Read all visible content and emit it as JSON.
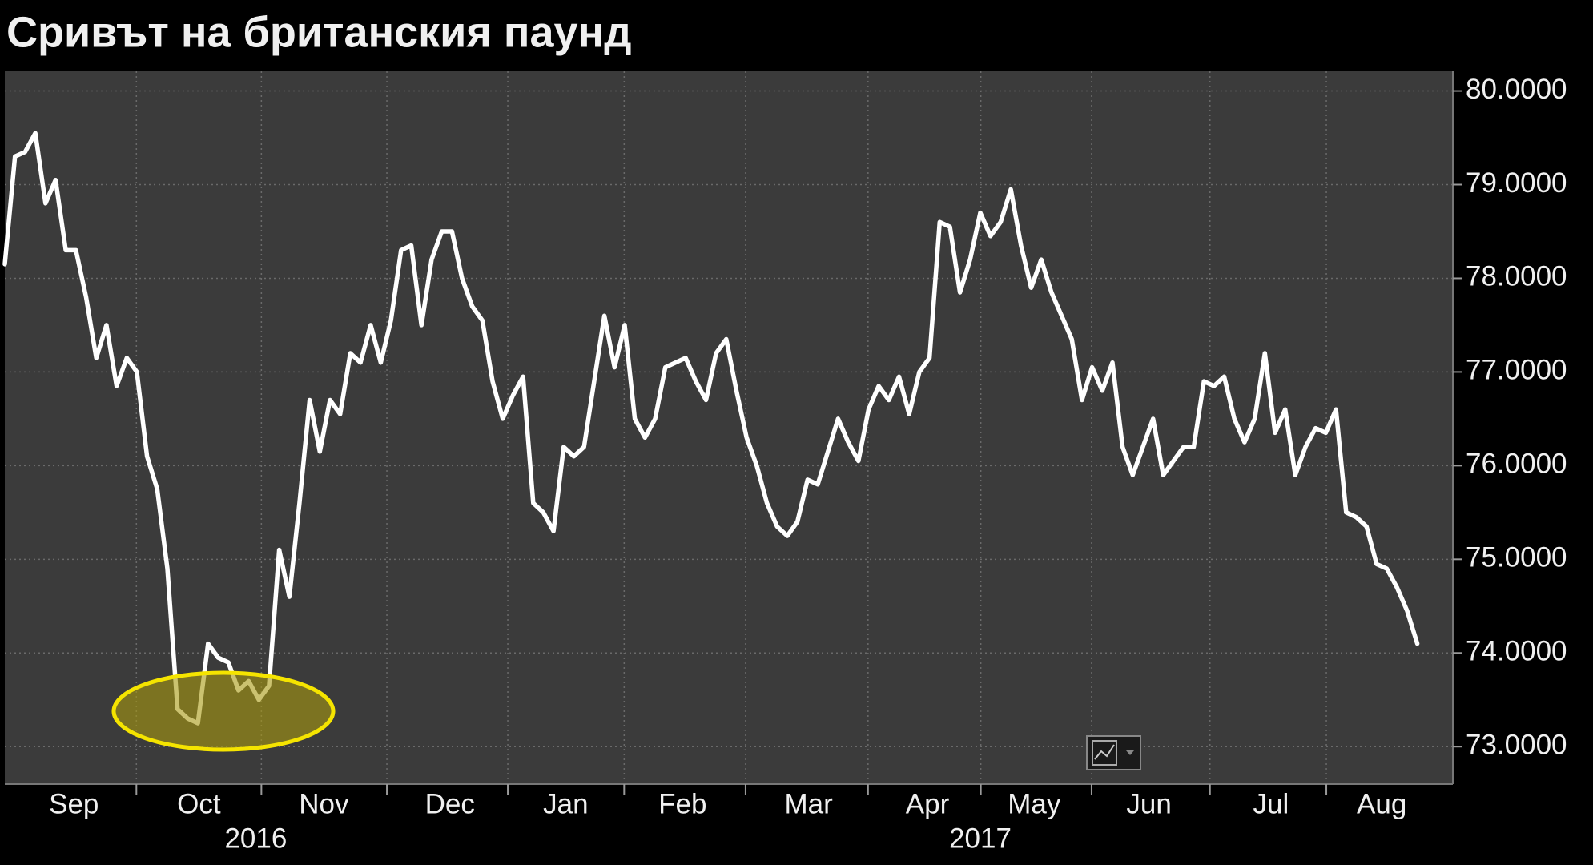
{
  "chart_data": {
    "type": "line",
    "title": "Сривът на британския паунд",
    "series": [
      {
        "color": "#ffffff",
        "values": [
          78.15,
          79.3,
          79.35,
          79.55,
          78.8,
          79.05,
          78.3,
          78.3,
          77.8,
          77.15,
          77.5,
          76.85,
          77.15,
          77.0,
          76.1,
          75.75,
          74.9,
          73.4,
          73.3,
          73.25,
          74.1,
          73.95,
          73.9,
          73.6,
          73.7,
          73.5,
          73.65,
          75.1,
          74.6,
          75.6,
          76.7,
          76.15,
          76.7,
          76.55,
          77.2,
          77.1,
          77.5,
          77.1,
          77.55,
          78.3,
          78.35,
          77.5,
          78.2,
          78.5,
          78.5,
          78.0,
          77.7,
          77.55,
          76.9,
          76.5,
          76.75,
          76.95,
          75.6,
          75.5,
          75.3,
          76.2,
          76.1,
          76.2,
          76.9,
          77.6,
          77.05,
          77.5,
          76.5,
          76.3,
          76.5,
          77.05,
          77.1,
          77.15,
          76.9,
          76.7,
          77.2,
          77.35,
          76.8,
          76.3,
          76.0,
          75.6,
          75.35,
          75.25,
          75.4,
          75.85,
          75.8,
          76.15,
          76.5,
          76.25,
          76.05,
          76.6,
          76.85,
          76.7,
          76.95,
          76.55,
          77.0,
          77.15,
          78.6,
          78.55,
          77.85,
          78.2,
          78.7,
          78.45,
          78.6,
          78.95,
          78.35,
          77.9,
          78.2,
          77.85,
          77.6,
          77.35,
          76.7,
          77.05,
          76.8,
          77.1,
          76.2,
          75.9,
          76.2,
          76.5,
          75.9,
          76.05,
          76.2,
          76.2,
          76.9,
          76.85,
          76.95,
          76.5,
          76.25,
          76.5,
          77.2,
          76.35,
          76.6,
          75.9,
          76.2,
          76.4,
          76.35,
          76.6,
          75.5,
          75.45,
          75.35,
          74.95,
          74.9,
          74.7,
          74.45,
          74.1
        ]
      }
    ],
    "xlim": [
      0,
      142.5
    ],
    "xticks": [
      {
        "value": 6.8,
        "label": "Sep"
      },
      {
        "value": 19.1,
        "label": "Oct"
      },
      {
        "value": 31.4,
        "label": "Nov"
      },
      {
        "value": 43.8,
        "label": "Dec"
      },
      {
        "value": 55.2,
        "label": "Jan"
      },
      {
        "value": 66.7,
        "label": "Feb"
      },
      {
        "value": 79.1,
        "label": "Mar"
      },
      {
        "value": 90.8,
        "label": "Apr"
      },
      {
        "value": 101.3,
        "label": "May"
      },
      {
        "value": 112.6,
        "label": "Jun"
      },
      {
        "value": 124.6,
        "label": "Jul"
      },
      {
        "value": 135.5,
        "label": "Aug"
      }
    ],
    "year_labels": [
      {
        "value": 24.7,
        "label": "2016"
      },
      {
        "value": 96,
        "label": "2017"
      }
    ],
    "ylim": [
      72.6,
      80.21
    ],
    "yticks": [
      {
        "value": 73,
        "label": "73.0000"
      },
      {
        "value": 74,
        "label": "74.0000"
      },
      {
        "value": 75,
        "label": "75.0000"
      },
      {
        "value": 76,
        "label": "76.0000"
      },
      {
        "value": 77,
        "label": "77.0000"
      },
      {
        "value": 78,
        "label": "78.0000"
      },
      {
        "value": 79,
        "label": "79.0000"
      },
      {
        "value": 80,
        "label": "80.0000"
      }
    ],
    "grid": true
  }
}
